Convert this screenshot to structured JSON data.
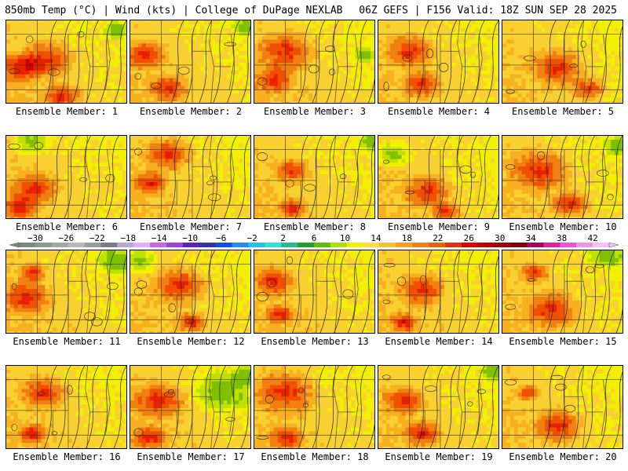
{
  "header": {
    "left": "850mb Temp (°C) | Wind (kts) | College of DuPage NEXLAB",
    "right": "06Z GEFS | F156 Valid: 18Z SUN SEP 28 2025"
  },
  "members": [
    {
      "label": "Ensemble Member: 1",
      "hot": [
        [
          0.32,
          0.45,
          0.28
        ],
        [
          0.1,
          0.55,
          0.22
        ],
        [
          0.45,
          0.9,
          0.2
        ]
      ],
      "cool": [
        [
          0.9,
          0.1,
          0.12
        ]
      ]
    },
    {
      "label": "Ensemble Member: 2",
      "hot": [
        [
          0.12,
          0.4,
          0.22
        ],
        [
          0.3,
          0.8,
          0.2
        ]
      ],
      "cool": [
        [
          0.95,
          0.05,
          0.15
        ]
      ]
    },
    {
      "label": "Ensemble Member: 3",
      "hot": [
        [
          0.25,
          0.35,
          0.3
        ],
        [
          0.15,
          0.7,
          0.2
        ]
      ],
      "cool": [
        [
          0.9,
          0.4,
          0.12
        ]
      ]
    },
    {
      "label": "Ensemble Member: 4",
      "hot": [
        [
          0.25,
          0.35,
          0.25
        ],
        [
          0.35,
          0.75,
          0.2
        ]
      ],
      "cool": []
    },
    {
      "label": "Ensemble Member: 5",
      "hot": [
        [
          0.45,
          0.55,
          0.28
        ],
        [
          0.7,
          0.8,
          0.18
        ]
      ],
      "cool": []
    },
    {
      "label": "Ensemble Member: 6",
      "hot": [
        [
          0.22,
          0.62,
          0.25
        ],
        [
          0.1,
          0.85,
          0.18
        ]
      ],
      "cool": [
        [
          0.2,
          0.05,
          0.2
        ]
      ]
    },
    {
      "label": "Ensemble Member: 7",
      "hot": [
        [
          0.3,
          0.2,
          0.25
        ],
        [
          0.15,
          0.55,
          0.18
        ]
      ],
      "cool": []
    },
    {
      "label": "Ensemble Member: 8",
      "hot": [
        [
          0.3,
          0.4,
          0.18
        ],
        [
          0.3,
          0.85,
          0.15
        ]
      ],
      "cool": [
        [
          0.95,
          0.05,
          0.12
        ]
      ]
    },
    {
      "label": "Ensemble Member: 9",
      "hot": [
        [
          0.4,
          0.65,
          0.25
        ],
        [
          0.55,
          0.9,
          0.15
        ]
      ],
      "cool": [
        [
          0.1,
          0.2,
          0.2
        ]
      ]
    },
    {
      "label": "Ensemble Member: 10",
      "hot": [
        [
          0.3,
          0.4,
          0.32
        ],
        [
          0.55,
          0.8,
          0.2
        ]
      ],
      "cool": [
        [
          0.95,
          0.1,
          0.15
        ]
      ]
    },
    {
      "label": "Ensemble Member: 11",
      "hot": [
        [
          0.15,
          0.55,
          0.25
        ],
        [
          0.2,
          0.25,
          0.15
        ]
      ],
      "cool": [
        [
          0.9,
          0.1,
          0.2
        ]
      ]
    },
    {
      "label": "Ensemble Member: 12",
      "hot": [
        [
          0.4,
          0.4,
          0.28
        ],
        [
          0.5,
          0.85,
          0.15
        ]
      ],
      "cool": [
        [
          0.05,
          0.1,
          0.2
        ]
      ]
    },
    {
      "label": "Ensemble Member: 13",
      "hot": [
        [
          0.15,
          0.35,
          0.22
        ],
        [
          0.2,
          0.75,
          0.15
        ]
      ],
      "cool": []
    },
    {
      "label": "Ensemble Member: 14",
      "hot": [
        [
          0.35,
          0.45,
          0.25
        ],
        [
          0.2,
          0.85,
          0.15
        ]
      ],
      "cool": []
    },
    {
      "label": "Ensemble Member: 15",
      "hot": [
        [
          0.4,
          0.7,
          0.28
        ],
        [
          0.25,
          0.25,
          0.15
        ]
      ],
      "cool": [
        [
          0.85,
          0.05,
          0.18
        ]
      ]
    },
    {
      "label": "Ensemble Member: 16",
      "hot": [
        [
          0.3,
          0.3,
          0.25
        ],
        [
          0.2,
          0.8,
          0.15
        ]
      ],
      "cool": []
    },
    {
      "label": "Ensemble Member: 17",
      "hot": [
        [
          0.22,
          0.4,
          0.28
        ],
        [
          0.15,
          0.85,
          0.18
        ]
      ],
      "cool": [
        [
          0.75,
          0.3,
          0.3
        ],
        [
          0.95,
          0.1,
          0.15
        ]
      ]
    },
    {
      "label": "Ensemble Member: 18",
      "hot": [
        [
          0.25,
          0.3,
          0.32
        ],
        [
          0.25,
          0.85,
          0.18
        ]
      ],
      "cool": []
    },
    {
      "label": "Ensemble Member: 19",
      "hot": [
        [
          0.2,
          0.4,
          0.22
        ],
        [
          0.35,
          0.8,
          0.2
        ]
      ],
      "cool": [
        [
          0.95,
          0.05,
          0.15
        ]
      ]
    },
    {
      "label": "Ensemble Member: 20",
      "hot": [
        [
          0.45,
          0.7,
          0.25
        ],
        [
          0.2,
          0.3,
          0.12
        ]
      ],
      "cool": []
    }
  ],
  "colorbar": {
    "labels": [
      "−30",
      "−26",
      "−22",
      "−18",
      "−14",
      "−10",
      "−6",
      "−2",
      "2",
      "6",
      "10",
      "14",
      "18",
      "22",
      "26",
      "30",
      "34",
      "38",
      "42"
    ],
    "colors": [
      "#7a8a7a",
      "#8a9a8a",
      "#a2a8a2",
      "#b8b8b8",
      "#9a9aaa",
      "#7a7a8a",
      "#b8a8d0",
      "#e0b0ff",
      "#d060f0",
      "#a040e0",
      "#6020c0",
      "#3030b0",
      "#1050e0",
      "#2090f0",
      "#20c0f0",
      "#30e0d0",
      "#20c080",
      "#20a020",
      "#60c000",
      "#b0e000",
      "#f0f000",
      "#f8e040",
      "#f8c030",
      "#f8a020",
      "#f08010",
      "#f06000",
      "#e83010",
      "#e00000",
      "#c00000",
      "#a00000",
      "#800000",
      "#b00060",
      "#e020a0",
      "#f050e0",
      "#f090f0",
      "#f8c0f8"
    ]
  },
  "theme": {
    "ramp": [
      "#7fc000",
      "#c0e000",
      "#f0f000",
      "#f8d030",
      "#f8b020",
      "#f08010",
      "#f05000",
      "#e82000",
      "#d00000"
    ]
  }
}
